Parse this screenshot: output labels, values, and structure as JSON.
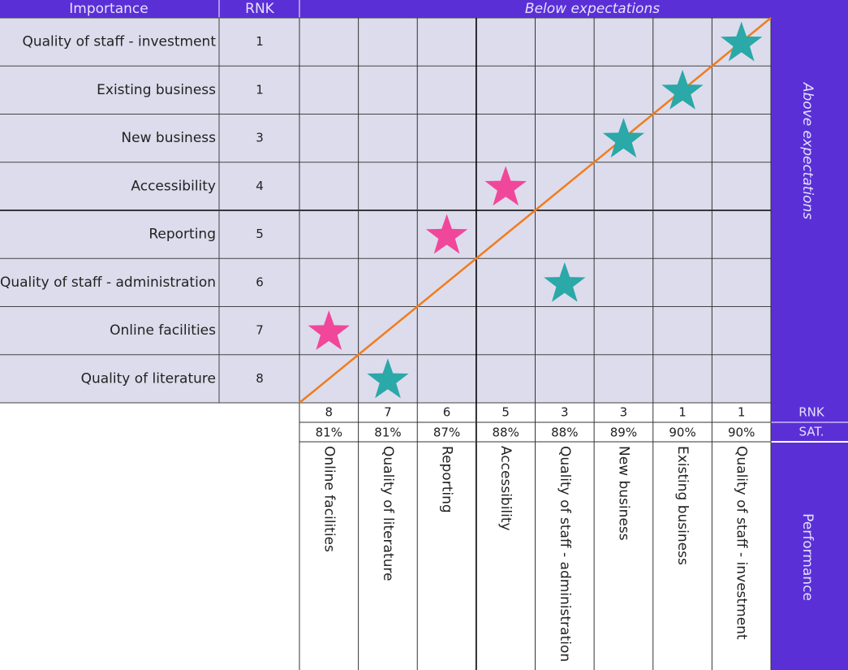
{
  "header": {
    "importance": "Importance",
    "rank": "RNK",
    "below": "Below expectations",
    "above": "Above expectations",
    "performance": "Performance",
    "rank_row": "RNK",
    "sat_row": "SAT."
  },
  "rows": [
    {
      "label": "Quality of staff - investment",
      "rank": 1,
      "color": "#2ba8a8"
    },
    {
      "label": "Existing business",
      "rank": 1,
      "color": "#2ba8a8"
    },
    {
      "label": "New business",
      "rank": 3,
      "color": "#2ba8a8"
    },
    {
      "label": "Accessibility",
      "rank": 4,
      "color": "#f0479a"
    },
    {
      "label": "Reporting",
      "rank": 5,
      "color": "#f0479a"
    },
    {
      "label": "Quality of staff - administration",
      "rank": 6,
      "color": "#2ba8a8"
    },
    {
      "label": "Online facilities",
      "rank": 7,
      "color": "#f0479a"
    },
    {
      "label": "Quality of literature",
      "rank": 8,
      "color": "#2ba8a8"
    }
  ],
  "columns": [
    {
      "label": "Online facilities",
      "rank": 8,
      "sat": "81%"
    },
    {
      "label": "Quality of literature",
      "rank": 7,
      "sat": "81%"
    },
    {
      "label": "Reporting",
      "rank": 6,
      "sat": "87%"
    },
    {
      "label": "Accessibility",
      "rank": 5,
      "sat": "88%"
    },
    {
      "label": "Quality of staff - administration",
      "rank": 3,
      "sat": "88%"
    },
    {
      "label": "New business",
      "rank": 3,
      "sat": "89%"
    },
    {
      "label": "Existing business",
      "rank": 1,
      "sat": "90%"
    },
    {
      "label": "Quality of staff - investment",
      "rank": 1,
      "sat": "90%"
    }
  ],
  "diagonal_color": "#f07c1e"
}
